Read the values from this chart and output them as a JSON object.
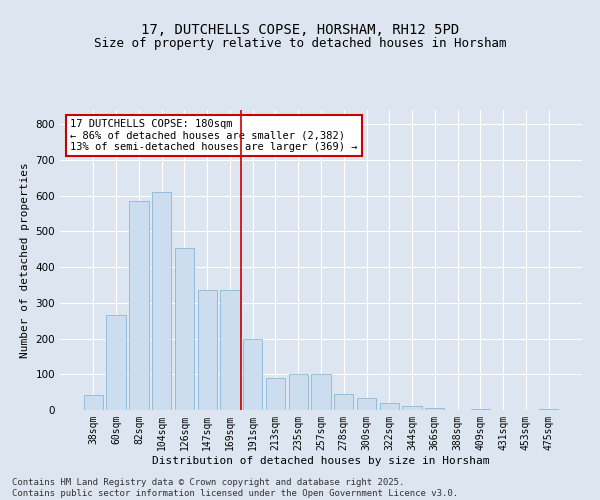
{
  "title1": "17, DUTCHELLS COPSE, HORSHAM, RH12 5PD",
  "title2": "Size of property relative to detached houses in Horsham",
  "xlabel": "Distribution of detached houses by size in Horsham",
  "ylabel": "Number of detached properties",
  "categories": [
    "38sqm",
    "60sqm",
    "82sqm",
    "104sqm",
    "126sqm",
    "147sqm",
    "169sqm",
    "191sqm",
    "213sqm",
    "235sqm",
    "257sqm",
    "278sqm",
    "300sqm",
    "322sqm",
    "344sqm",
    "366sqm",
    "388sqm",
    "409sqm",
    "431sqm",
    "453sqm",
    "475sqm"
  ],
  "values": [
    42,
    265,
    585,
    610,
    455,
    335,
    335,
    200,
    90,
    100,
    100,
    45,
    35,
    20,
    12,
    5,
    0,
    3,
    0,
    0,
    2
  ],
  "bar_color": "#ccddf0",
  "bar_edge_color": "#7aafd4",
  "vline_color": "#cc0000",
  "vline_x": 6.5,
  "annotation_text": "17 DUTCHELLS COPSE: 180sqm\n← 86% of detached houses are smaller (2,382)\n13% of semi-detached houses are larger (369) →",
  "annotation_box_color": "#ffffff",
  "annotation_box_edge": "#cc0000",
  "bg_color": "#dde6f0",
  "plot_bg_color": "#dde6f0",
  "grid_color": "#ffffff",
  "footer_text": "Contains HM Land Registry data © Crown copyright and database right 2025.\nContains public sector information licensed under the Open Government Licence v3.0.",
  "ylim": [
    0,
    840
  ],
  "title_fontsize": 10,
  "subtitle_fontsize": 9,
  "tick_fontsize": 7,
  "label_fontsize": 8,
  "footer_fontsize": 6.5,
  "annotation_fontsize": 7.5
}
